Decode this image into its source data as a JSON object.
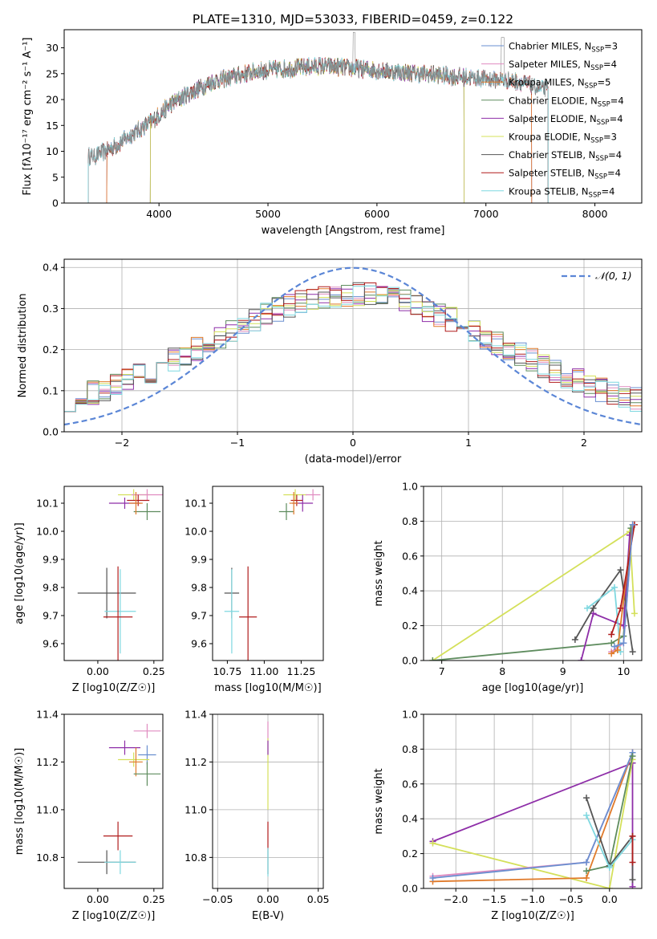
{
  "figure_title": "PLATE=1310, MJD=53033, FIBERID=0459, z=0.122",
  "colors": {
    "Chabrier MILES": "#6a8fd0",
    "Salpeter MILES": "#e08cc0",
    "Kroupa MILES": "#e07a2a",
    "Chabrier ELODIE": "#5e8c5e",
    "Salpeter ELODIE": "#8e2ea8",
    "Kroupa ELODIE": "#d4e05a",
    "Chabrier STELIB": "#555555",
    "Salpeter STELIB": "#b01c1c",
    "Kroupa STELIB": "#7fd8e0",
    "normal": "#5b86d6"
  },
  "chart_data": [
    {
      "id": "spectrum",
      "type": "line",
      "xlabel": "wavelength [Angstrom, rest frame]",
      "ylabel": "Flux [fλ10⁻¹⁷ erg cm⁻² s⁻¹ A⁻¹]",
      "xlim": [
        3130,
        8430
      ],
      "ylim": [
        0,
        33.5
      ],
      "xticks": [
        4000,
        5000,
        6000,
        7000,
        8000
      ],
      "yticks": [
        0,
        5,
        10,
        15,
        20,
        25,
        30
      ],
      "legend": "top-right",
      "legend_entries": [
        {
          "name": "Chabrier MILES",
          "nssp": "3"
        },
        {
          "name": "Salpeter MILES",
          "nssp": "4"
        },
        {
          "name": "Kroupa MILES",
          "nssp": "5"
        },
        {
          "name": "Chabrier ELODIE",
          "nssp": "4"
        },
        {
          "name": "Salpeter ELODIE",
          "nssp": "4"
        },
        {
          "name": "Kroupa ELODIE",
          "nssp": "3"
        },
        {
          "name": "Chabrier STELIB",
          "nssp": "4"
        },
        {
          "name": "Salpeter STELIB",
          "nssp": "4"
        },
        {
          "name": "Kroupa STELIB",
          "nssp": "4"
        }
      ],
      "continuum": {
        "x": [
          3400,
          3600,
          3800,
          3950,
          4100,
          4300,
          4500,
          4700,
          4900,
          5200,
          5500,
          5800,
          6100,
          6400,
          6700,
          7000,
          7300,
          7500
        ],
        "y": [
          9,
          11,
          14,
          16,
          19,
          21.5,
          23.5,
          24.5,
          25.5,
          26,
          26.5,
          26,
          25.5,
          25,
          24.5,
          24,
          23.5,
          22
        ]
      },
      "data_range": [
        3350,
        7570
      ],
      "model_ranges": {
        "MILES": [
          3520,
          7420
        ],
        "ELODIE": [
          3920,
          6800
        ],
        "STELIB": [
          3350,
          7570
        ]
      }
    },
    {
      "id": "residual-histogram",
      "type": "bar",
      "xlabel": "(data-model)/error",
      "ylabel": "Normed distribution",
      "xlim": [
        -2.5,
        2.5
      ],
      "ylim": [
        0,
        0.42
      ],
      "xticks": [
        -2,
        -1,
        0,
        1,
        2
      ],
      "yticks": [
        0.0,
        0.1,
        0.2,
        0.3,
        0.4
      ],
      "grid": true,
      "legend": "top-right",
      "legend_label": "𝒩(0, 1)",
      "bin_width": 0.1,
      "curve": "normal(0,1)"
    },
    {
      "id": "age-vs-Z",
      "type": "scatter",
      "xlabel": "Z [log10(Z/Z☉)]",
      "ylabel": "age  [log10(age/yr)]",
      "xlim": [
        -0.15,
        0.29
      ],
      "ylim": [
        9.54,
        10.16
      ],
      "xticks": [
        0.0,
        0.25
      ],
      "yticks": [
        9.6,
        9.7,
        9.8,
        9.9,
        10.0,
        10.1
      ],
      "points": [
        {
          "model": "Kroupa ELODIE",
          "x": 0.16,
          "y": 10.13,
          "xerr": 0.07,
          "yerr": 0.02
        },
        {
          "model": "Salpeter MILES",
          "x": 0.22,
          "y": 10.13,
          "xerr": 0.07,
          "yerr": 0.02
        },
        {
          "model": "Salpeter ELODIE",
          "x": 0.12,
          "y": 10.1,
          "xerr": 0.07,
          "yerr": 0.02
        },
        {
          "model": "Salpeter STELIB",
          "x": 0.18,
          "y": 10.11,
          "xerr": 0.05,
          "yerr": 0.02
        },
        {
          "model": "Chabrier ELODIE",
          "x": 0.22,
          "y": 10.07,
          "xerr": 0.06,
          "yerr": 0.03
        },
        {
          "model": "Kroupa MILES",
          "x": 0.17,
          "y": 10.1,
          "xerr": 0.03,
          "yerr": 0.04
        },
        {
          "model": "Chabrier STELIB",
          "x": 0.04,
          "y": 9.78,
          "xerr": 0.13,
          "yerr": 0.09
        },
        {
          "model": "Kroupa STELIB",
          "x": 0.1,
          "y": 9.715,
          "xerr": 0.07,
          "yerr": 0.15
        },
        {
          "model": "Salpeter STELIB",
          "x": 0.09,
          "y": 9.695,
          "xerr": 0.065,
          "yerr": 0.18
        }
      ]
    },
    {
      "id": "age-vs-mass",
      "type": "scatter",
      "xlabel": "mass [log10(M/M☉)]",
      "ylabel": "",
      "xlim": [
        10.65,
        11.4
      ],
      "ylim": [
        9.54,
        10.16
      ],
      "xticks": [
        10.75,
        11.0,
        11.25
      ],
      "yticks": [
        9.6,
        9.7,
        9.8,
        9.9,
        10.0,
        10.1
      ],
      "points": [
        {
          "model": "Kroupa ELODIE",
          "x": 11.21,
          "y": 10.13,
          "xerr": 0.08,
          "yerr": 0.02
        },
        {
          "model": "Salpeter MILES",
          "x": 11.33,
          "y": 10.13,
          "xerr": 0.05,
          "yerr": 0.02
        },
        {
          "model": "Salpeter ELODIE",
          "x": 11.26,
          "y": 10.1,
          "xerr": 0.07,
          "yerr": 0.03
        },
        {
          "model": "Salpeter STELIB",
          "x": 11.22,
          "y": 10.11,
          "xerr": 0.04,
          "yerr": 0.02
        },
        {
          "model": "Chabrier ELODIE",
          "x": 11.15,
          "y": 10.07,
          "xerr": 0.05,
          "yerr": 0.03
        },
        {
          "model": "Kroupa MILES",
          "x": 11.2,
          "y": 10.1,
          "xerr": 0.03,
          "yerr": 0.04
        },
        {
          "model": "Chabrier STELIB",
          "x": 10.78,
          "y": 9.78,
          "xerr": 0.05,
          "yerr": 0.09
        },
        {
          "model": "Kroupa STELIB",
          "x": 10.78,
          "y": 9.715,
          "xerr": 0.05,
          "yerr": 0.15
        },
        {
          "model": "Salpeter STELIB",
          "x": 10.89,
          "y": 9.695,
          "xerr": 0.06,
          "yerr": 0.18
        }
      ]
    },
    {
      "id": "massweight-vs-age",
      "type": "line",
      "xlabel": "age  [log10(age/yr)]",
      "ylabel": "mass weight",
      "xlim": [
        6.7,
        10.3
      ],
      "ylim": [
        0,
        1.0
      ],
      "xticks": [
        7,
        8,
        9,
        10
      ],
      "yticks": [
        0.0,
        0.2,
        0.4,
        0.6,
        0.8,
        1.0
      ],
      "grid": true,
      "series": [
        {
          "model": "Kroupa ELODIE",
          "x": [
            6.85,
            10.1,
            10.18
          ],
          "y": [
            0.0,
            0.74,
            0.27
          ]
        },
        {
          "model": "Chabrier ELODIE",
          "x": [
            6.85,
            9.8,
            10.0,
            10.12
          ],
          "y": [
            0.0,
            0.1,
            0.14,
            0.76
          ]
        },
        {
          "model": "Salpeter ELODIE",
          "x": [
            9.3,
            9.5,
            10.0,
            10.1
          ],
          "y": [
            0.0,
            0.27,
            0.2,
            0.72
          ]
        },
        {
          "model": "Chabrier STELIB",
          "x": [
            9.2,
            9.5,
            9.95,
            10.15
          ],
          "y": [
            0.12,
            0.3,
            0.52,
            0.05
          ]
        },
        {
          "model": "Kroupa STELIB",
          "x": [
            9.4,
            9.85,
            9.95
          ],
          "y": [
            0.3,
            0.42,
            0.05
          ]
        },
        {
          "model": "Salpeter MILES",
          "x": [
            9.8,
            10.0,
            10.15
          ],
          "y": [
            0.05,
            0.1,
            0.78
          ]
        },
        {
          "model": "Kroupa MILES",
          "x": [
            9.8,
            9.9,
            10.15
          ],
          "y": [
            0.04,
            0.06,
            0.78
          ]
        },
        {
          "model": "Salpeter STELIB",
          "x": [
            9.8,
            9.95,
            10.18
          ],
          "y": [
            0.15,
            0.3,
            0.78
          ]
        },
        {
          "model": "Chabrier MILES",
          "x": [
            9.85,
            10.0,
            10.15
          ],
          "y": [
            0.08,
            0.1,
            0.78
          ]
        }
      ]
    },
    {
      "id": "mass-vs-Z",
      "type": "scatter",
      "xlabel": "Z [log10(Z/Z☉)]",
      "ylabel": "mass [log10(M/M☉)]",
      "xlim": [
        -0.15,
        0.29
      ],
      "ylim": [
        10.67,
        11.4
      ],
      "xticks": [
        0.0,
        0.25
      ],
      "yticks": [
        10.8,
        11.0,
        11.2,
        11.4
      ],
      "points": [
        {
          "model": "Salpeter MILES",
          "x": 0.22,
          "y": 11.33,
          "xerr": 0.06,
          "yerr": 0.03
        },
        {
          "model": "Salpeter ELODIE",
          "x": 0.12,
          "y": 11.26,
          "xerr": 0.07,
          "yerr": 0.03
        },
        {
          "model": "Chabrier MILES",
          "x": 0.22,
          "y": 11.23,
          "xerr": 0.04,
          "yerr": 0.04
        },
        {
          "model": "Kroupa ELODIE",
          "x": 0.16,
          "y": 11.21,
          "xerr": 0.07,
          "yerr": 0.03
        },
        {
          "model": "Kroupa MILES",
          "x": 0.17,
          "y": 11.2,
          "xerr": 0.03,
          "yerr": 0.06
        },
        {
          "model": "Chabrier ELODIE",
          "x": 0.22,
          "y": 11.15,
          "xerr": 0.06,
          "yerr": 0.05
        },
        {
          "model": "Salpeter STELIB",
          "x": 0.09,
          "y": 10.89,
          "xerr": 0.065,
          "yerr": 0.06
        },
        {
          "model": "Chabrier STELIB",
          "x": 0.04,
          "y": 10.78,
          "xerr": 0.13,
          "yerr": 0.05
        },
        {
          "model": "Kroupa STELIB",
          "x": 0.1,
          "y": 10.78,
          "xerr": 0.07,
          "yerr": 0.05
        }
      ]
    },
    {
      "id": "mass-vs-EBV",
      "type": "scatter",
      "xlabel": "E(B-V)",
      "ylabel": "",
      "xlim": [
        -0.055,
        0.055
      ],
      "ylim": [
        10.67,
        11.4
      ],
      "xticks": [
        -0.05,
        0.0,
        0.05
      ],
      "yticks": [
        10.8,
        11.0,
        11.2,
        11.4
      ],
      "grid": true,
      "points": [
        {
          "model": "Salpeter MILES",
          "x": 0.0,
          "y": 11.33,
          "xerr": 0,
          "yerr": 0.04
        },
        {
          "model": "Kroupa ELODIE",
          "x": 0.0,
          "y": 11.15,
          "xerr": 0,
          "yerr": 0.15
        },
        {
          "model": "Salpeter ELODIE",
          "x": 0.0,
          "y": 11.26,
          "xerr": 0,
          "yerr": 0.03
        },
        {
          "model": "Salpeter STELIB",
          "x": 0.0,
          "y": 10.89,
          "xerr": 0,
          "yerr": 0.06
        },
        {
          "model": "Chabrier STELIB",
          "x": 0.0,
          "y": 10.78,
          "xerr": 0,
          "yerr": 0.05
        },
        {
          "model": "Kroupa STELIB",
          "x": 0.0,
          "y": 10.78,
          "xerr": 0,
          "yerr": 0.06
        }
      ]
    },
    {
      "id": "massweight-vs-Z",
      "type": "line",
      "xlabel": "Z [log10(Z/Z☉)]",
      "ylabel": "mass weight",
      "xlim": [
        -2.42,
        0.42
      ],
      "ylim": [
        0,
        1.0
      ],
      "xticks": [
        -2.0,
        -1.5,
        -1.0,
        -0.5,
        0.0
      ],
      "yticks": [
        0.0,
        0.2,
        0.4,
        0.6,
        0.8,
        1.0
      ],
      "grid": true,
      "series": [
        {
          "model": "Salpeter ELODIE",
          "x": [
            -2.3,
            0.3,
            0.3
          ],
          "y": [
            0.27,
            0.72,
            0.01
          ]
        },
        {
          "model": "Kroupa ELODIE",
          "x": [
            -2.3,
            0.0,
            0.3
          ],
          "y": [
            0.26,
            0.0,
            0.74
          ]
        },
        {
          "model": "Kroupa MILES",
          "x": [
            -2.3,
            -0.3,
            0.3
          ],
          "y": [
            0.04,
            0.06,
            0.78
          ]
        },
        {
          "model": "Salpeter MILES",
          "x": [
            -2.3,
            -0.3,
            0.3
          ],
          "y": [
            0.07,
            0.15,
            0.78
          ]
        },
        {
          "model": "Chabrier MILES",
          "x": [
            -2.3,
            -0.3,
            0.3
          ],
          "y": [
            0.06,
            0.15,
            0.78
          ]
        },
        {
          "model": "Chabrier ELODIE",
          "x": [
            -0.3,
            0.0,
            0.3
          ],
          "y": [
            0.1,
            0.13,
            0.76
          ]
        },
        {
          "model": "Chabrier STELIB",
          "x": [
            -0.3,
            0.0,
            0.3,
            0.3
          ],
          "y": [
            0.52,
            0.13,
            0.3,
            0.05
          ]
        },
        {
          "model": "Kroupa STELIB",
          "x": [
            -0.3,
            0.0,
            0.3
          ],
          "y": [
            0.42,
            0.12,
            0.28
          ]
        },
        {
          "model": "Salpeter STELIB",
          "x": [
            0.3,
            0.3
          ],
          "y": [
            0.3,
            0.15
          ]
        }
      ]
    }
  ]
}
